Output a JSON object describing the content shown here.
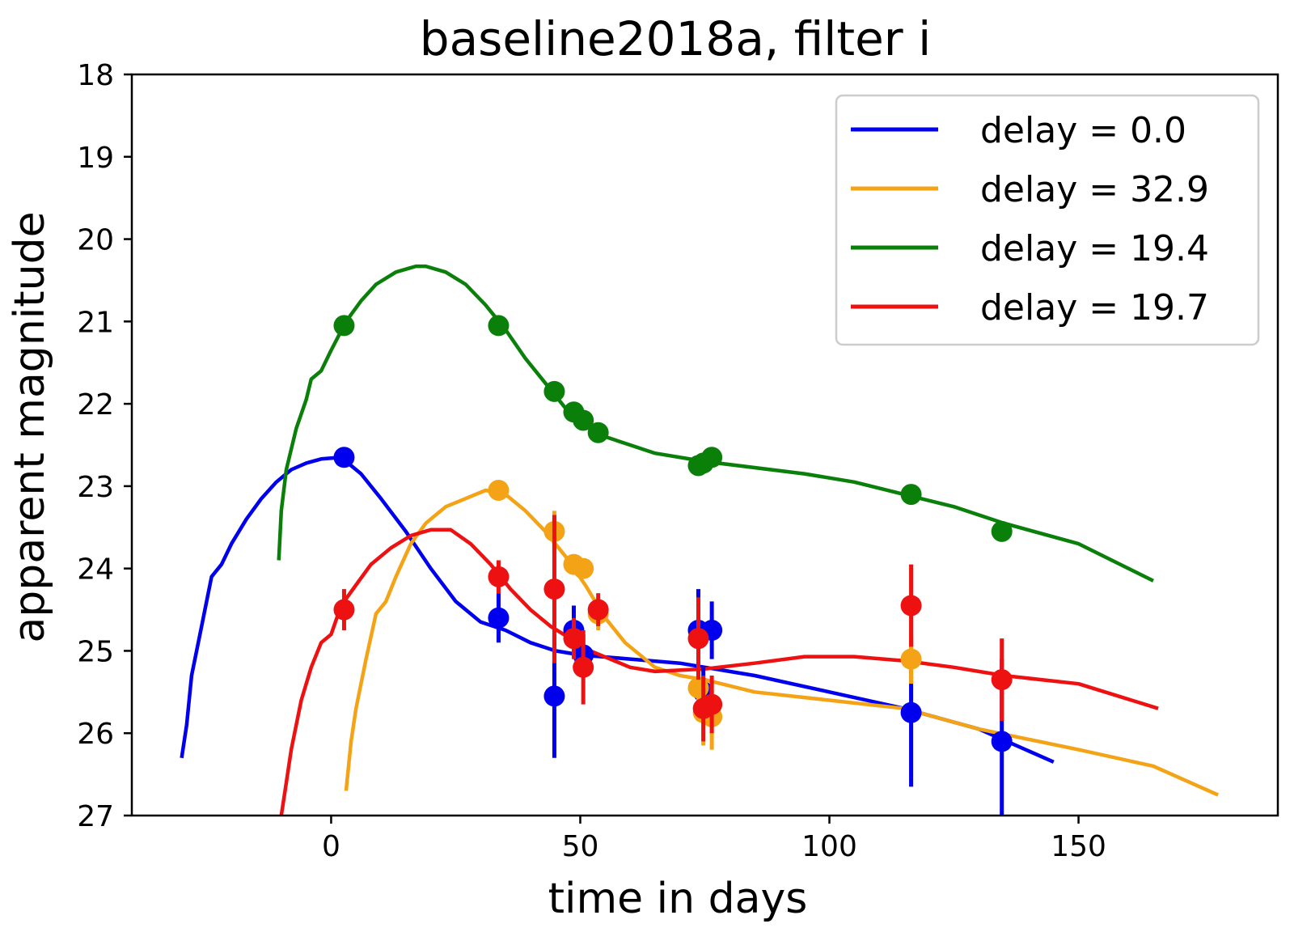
{
  "chart_data": {
    "type": "line",
    "title": "baseline2018a, filter i",
    "xlabel": "time in days",
    "ylabel": "apparent magnitude",
    "xlim": [
      -40,
      190
    ],
    "ylim": [
      18,
      27
    ],
    "y_inverted": true,
    "xticks": [
      0,
      50,
      100,
      150
    ],
    "yticks": [
      18,
      19,
      20,
      21,
      22,
      23,
      24,
      25,
      26,
      27
    ],
    "grid": false,
    "legend_position": "top-right",
    "series": [
      {
        "name": "delay = 0.0",
        "color": "#0000ee",
        "curve": [
          [
            -30,
            26.3
          ],
          [
            -29,
            25.9
          ],
          [
            -28,
            25.3
          ],
          [
            -26,
            24.7
          ],
          [
            -24,
            24.1
          ],
          [
            -22,
            23.95
          ],
          [
            -20,
            23.7
          ],
          [
            -17,
            23.4
          ],
          [
            -14,
            23.15
          ],
          [
            -11,
            22.95
          ],
          [
            -8,
            22.8
          ],
          [
            -5,
            22.72
          ],
          [
            -2,
            22.67
          ],
          [
            2,
            22.65
          ],
          [
            6,
            22.85
          ],
          [
            10,
            23.15
          ],
          [
            15,
            23.55
          ],
          [
            20,
            24.0
          ],
          [
            25,
            24.4
          ],
          [
            30,
            24.65
          ],
          [
            35,
            24.75
          ],
          [
            40,
            24.9
          ],
          [
            45,
            25.0
          ],
          [
            50,
            25.05
          ],
          [
            60,
            25.1
          ],
          [
            70,
            25.15
          ],
          [
            85,
            25.3
          ],
          [
            100,
            25.5
          ],
          [
            115,
            25.7
          ],
          [
            130,
            25.95
          ],
          [
            145,
            26.35
          ]
        ],
        "points": [
          [
            2.6,
            22.65,
            0.05
          ],
          [
            33.6,
            24.6,
            0.3
          ],
          [
            44.8,
            25.55,
            0.75
          ],
          [
            48.7,
            24.75,
            0.3
          ],
          [
            50.6,
            25.05,
            0.25
          ],
          [
            73.7,
            24.75,
            0.5
          ],
          [
            74.7,
            25.5,
            0.3
          ],
          [
            76.4,
            24.75,
            0.35
          ],
          [
            116.4,
            25.75,
            0.9
          ],
          [
            134.6,
            26.1,
            1.0
          ]
        ]
      },
      {
        "name": "delay = 32.9",
        "color": "#f5a316",
        "curve": [
          [
            3,
            26.7
          ],
          [
            4,
            26.1
          ],
          [
            5,
            25.7
          ],
          [
            7,
            25.1
          ],
          [
            9,
            24.55
          ],
          [
            11,
            24.4
          ],
          [
            13,
            24.1
          ],
          [
            16,
            23.7
          ],
          [
            19,
            23.45
          ],
          [
            23,
            23.25
          ],
          [
            27,
            23.15
          ],
          [
            31,
            23.05
          ],
          [
            35,
            23.1
          ],
          [
            39,
            23.3
          ],
          [
            43,
            23.55
          ],
          [
            47,
            23.85
          ],
          [
            51,
            24.2
          ],
          [
            55,
            24.6
          ],
          [
            59,
            24.9
          ],
          [
            65,
            25.2
          ],
          [
            70,
            25.3
          ],
          [
            75,
            25.35
          ],
          [
            85,
            25.5
          ],
          [
            100,
            25.6
          ],
          [
            115,
            25.7
          ],
          [
            130,
            25.95
          ],
          [
            150,
            26.2
          ],
          [
            165,
            26.4
          ],
          [
            178,
            26.75
          ]
        ],
        "points": [
          [
            33.6,
            23.05,
            0.05
          ],
          [
            44.8,
            23.55,
            0.25
          ],
          [
            48.7,
            23.95,
            0.1
          ],
          [
            50.6,
            24.0,
            0.1
          ],
          [
            53.6,
            24.55,
            0.2
          ],
          [
            73.7,
            25.45,
            0.4
          ],
          [
            74.7,
            25.75,
            0.4
          ],
          [
            76.4,
            25.8,
            0.4
          ],
          [
            116.4,
            25.1,
            0.3
          ]
        ]
      },
      {
        "name": "delay = 19.4",
        "color": "#0a7f0a",
        "curve": [
          [
            -10.5,
            23.9
          ],
          [
            -10,
            23.3
          ],
          [
            -9,
            22.8
          ],
          [
            -7,
            22.3
          ],
          [
            -5,
            21.95
          ],
          [
            -4,
            21.7
          ],
          [
            -2,
            21.6
          ],
          [
            0,
            21.35
          ],
          [
            3,
            21.0
          ],
          [
            6,
            20.75
          ],
          [
            9,
            20.55
          ],
          [
            13,
            20.4
          ],
          [
            17,
            20.33
          ],
          [
            19,
            20.33
          ],
          [
            23,
            20.4
          ],
          [
            27,
            20.55
          ],
          [
            31,
            20.8
          ],
          [
            35,
            21.1
          ],
          [
            39,
            21.45
          ],
          [
            43,
            21.75
          ],
          [
            47,
            22.05
          ],
          [
            51,
            22.25
          ],
          [
            55,
            22.4
          ],
          [
            60,
            22.5
          ],
          [
            65,
            22.6
          ],
          [
            75,
            22.7
          ],
          [
            95,
            22.85
          ],
          [
            105,
            22.95
          ],
          [
            115,
            23.1
          ],
          [
            125,
            23.25
          ],
          [
            135,
            23.45
          ],
          [
            150,
            23.7
          ],
          [
            165,
            24.15
          ]
        ],
        "points": [
          [
            2.6,
            21.05,
            0.05
          ],
          [
            33.6,
            21.05,
            0.05
          ],
          [
            44.8,
            21.85,
            0.05
          ],
          [
            48.7,
            22.1,
            0.05
          ],
          [
            50.6,
            22.2,
            0.05
          ],
          [
            53.6,
            22.35,
            0.05
          ],
          [
            73.7,
            22.75,
            0.05
          ],
          [
            74.7,
            22.72,
            0.05
          ],
          [
            76.4,
            22.65,
            0.05
          ],
          [
            116.4,
            23.1,
            0.05
          ],
          [
            134.6,
            23.55,
            0.05
          ]
        ]
      },
      {
        "name": "delay = 19.7",
        "color": "#ee1111",
        "curve": [
          [
            -10,
            27.0
          ],
          [
            -9,
            26.6
          ],
          [
            -8,
            26.2
          ],
          [
            -6,
            25.6
          ],
          [
            -4,
            25.2
          ],
          [
            -2,
            24.9
          ],
          [
            0,
            24.8
          ],
          [
            2,
            24.45
          ],
          [
            5,
            24.2
          ],
          [
            8,
            23.95
          ],
          [
            12,
            23.75
          ],
          [
            16,
            23.6
          ],
          [
            20,
            23.53
          ],
          [
            24,
            23.53
          ],
          [
            28,
            23.7
          ],
          [
            32,
            23.95
          ],
          [
            36,
            24.25
          ],
          [
            40,
            24.5
          ],
          [
            44,
            24.7
          ],
          [
            48,
            24.85
          ],
          [
            52,
            25.0
          ],
          [
            56,
            25.1
          ],
          [
            60,
            25.2
          ],
          [
            65,
            25.25
          ],
          [
            75,
            25.22
          ],
          [
            85,
            25.15
          ],
          [
            95,
            25.07
          ],
          [
            105,
            25.07
          ],
          [
            115,
            25.12
          ],
          [
            125,
            25.2
          ],
          [
            135,
            25.3
          ],
          [
            150,
            25.4
          ],
          [
            166,
            25.7
          ]
        ],
        "points": [
          [
            2.6,
            24.5,
            0.25
          ],
          [
            33.6,
            24.1,
            0.2
          ],
          [
            44.8,
            24.25,
            0.9
          ],
          [
            48.7,
            24.85,
            0.25
          ],
          [
            50.6,
            25.2,
            0.45
          ],
          [
            53.6,
            24.5,
            0.2
          ],
          [
            73.7,
            24.85,
            0.5
          ],
          [
            74.7,
            25.7,
            0.4
          ],
          [
            76.4,
            25.65,
            0.35
          ],
          [
            116.4,
            24.45,
            0.5
          ],
          [
            134.6,
            25.35,
            0.5
          ]
        ]
      }
    ]
  }
}
